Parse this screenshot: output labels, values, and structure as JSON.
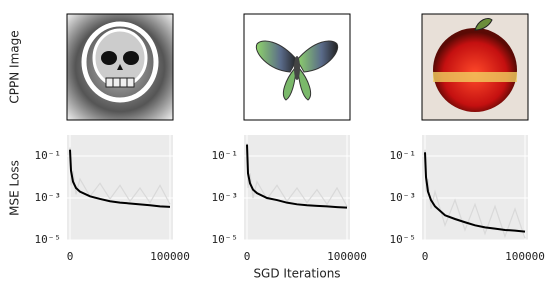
{
  "figure": {
    "image_label": "CPPN Image",
    "y_label": "MSE Loss",
    "x_label": "SGD Iterations"
  },
  "chart_data": [
    {
      "type": "line",
      "log_y": true,
      "grid": true,
      "x": [
        0,
        1000,
        3000,
        6000,
        10000,
        20000,
        30000,
        40000,
        50000,
        60000,
        70000,
        80000,
        90000,
        100000
      ],
      "series": [
        {
          "color": "#d9d9d9",
          "values": [
            0.25,
            0.004,
            0.02,
            0.0015,
            0.008,
            0.0012,
            0.005,
            0.0009,
            0.004,
            0.0007,
            0.003,
            0.0006,
            0.004,
            0.0005
          ]
        },
        {
          "color": "#000000",
          "values": [
            0.2,
            0.02,
            0.006,
            0.003,
            0.002,
            0.0012,
            0.0009,
            0.0007,
            0.0006,
            0.00055,
            0.0005,
            0.00045,
            0.0004,
            0.00038
          ]
        }
      ],
      "xlim": [
        -3000,
        103000
      ],
      "xticks": [
        0,
        100000
      ],
      "ylim": [
        1e-05,
        1
      ],
      "yticks": [
        {
          "value": 0.1,
          "label": "10⁻¹"
        },
        {
          "value": 0.001,
          "label": "10⁻³"
        },
        {
          "value": 1e-05,
          "label": "10⁻⁵"
        }
      ]
    },
    {
      "type": "line",
      "log_y": true,
      "grid": true,
      "x": [
        0,
        1000,
        3000,
        6000,
        10000,
        20000,
        30000,
        40000,
        50000,
        60000,
        70000,
        80000,
        90000,
        100000
      ],
      "series": [
        {
          "color": "#d9d9d9",
          "values": [
            0.4,
            0.003,
            0.015,
            0.001,
            0.006,
            0.0009,
            0.004,
            0.0007,
            0.003,
            0.0006,
            0.0025,
            0.0005,
            0.003,
            0.0004
          ]
        },
        {
          "color": "#000000",
          "values": [
            0.35,
            0.015,
            0.005,
            0.0025,
            0.0017,
            0.001,
            0.0008,
            0.0006,
            0.0005,
            0.00045,
            0.00042,
            0.0004,
            0.00037,
            0.00035
          ]
        }
      ],
      "xlim": [
        -3000,
        103000
      ],
      "xticks": [
        0,
        100000
      ],
      "ylim": [
        1e-05,
        1
      ],
      "yticks": [
        {
          "value": 0.1,
          "label": "10⁻¹"
        },
        {
          "value": 0.001,
          "label": "10⁻³"
        },
        {
          "value": 1e-05,
          "label": "10⁻⁵"
        }
      ]
    },
    {
      "type": "line",
      "log_y": true,
      "grid": true,
      "x": [
        0,
        1000,
        3000,
        6000,
        10000,
        20000,
        30000,
        40000,
        50000,
        60000,
        70000,
        80000,
        90000,
        100000
      ],
      "series": [
        {
          "color": "#d9d9d9",
          "values": [
            0.2,
            0.002,
            0.008,
            0.0003,
            0.002,
            5e-05,
            0.0008,
            3e-05,
            0.0005,
            2e-05,
            0.0004,
            1.5e-05,
            0.0003,
            1.2e-05
          ]
        },
        {
          "color": "#000000",
          "values": [
            0.15,
            0.01,
            0.002,
            0.0008,
            0.0004,
            0.00015,
            0.0001,
            7e-05,
            5e-05,
            4e-05,
            3.5e-05,
            3e-05,
            2.8e-05,
            2.5e-05
          ]
        }
      ],
      "xlim": [
        -3000,
        103000
      ],
      "xticks": [
        0,
        100000
      ],
      "ylim": [
        1e-05,
        1
      ],
      "yticks": [
        {
          "value": 0.1,
          "label": "10⁻¹"
        },
        {
          "value": 0.001,
          "label": "10⁻³"
        },
        {
          "value": 1e-05,
          "label": "10⁻⁵"
        }
      ]
    }
  ]
}
